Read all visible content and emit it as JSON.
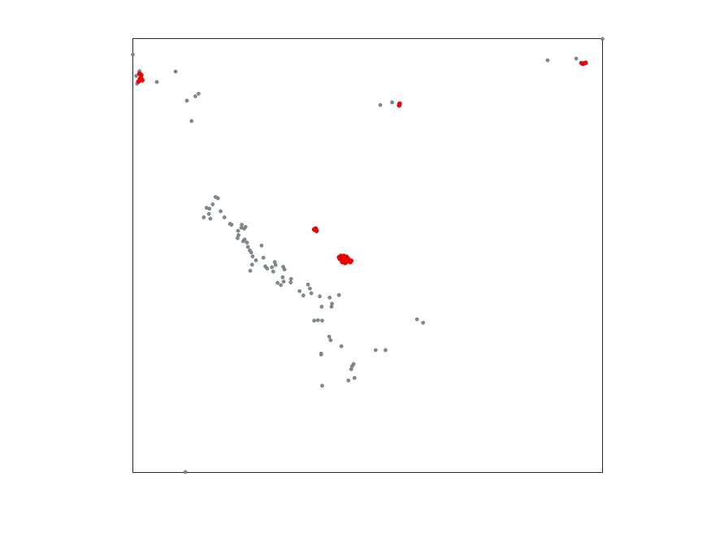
{
  "chart_data": {
    "type": "scatter",
    "title": "",
    "xlabel": "",
    "ylabel": "",
    "xlim": [
      0,
      1
    ],
    "ylim": [
      0,
      1
    ],
    "grid": false,
    "ticks": false,
    "series": [
      {
        "color": "#7f8c8d",
        "points": [
          [
            0.0,
            0.963
          ],
          [
            0.007,
            0.914
          ],
          [
            0.014,
            0.925
          ],
          [
            0.009,
            0.896
          ],
          [
            0.019,
            0.908
          ],
          [
            0.051,
            0.9
          ],
          [
            0.091,
            0.924
          ],
          [
            0.115,
            0.857
          ],
          [
            0.133,
            0.867
          ],
          [
            0.14,
            0.873
          ],
          [
            0.125,
            0.81
          ],
          [
            0.176,
            0.635
          ],
          [
            0.17,
            0.618
          ],
          [
            0.163,
            0.608
          ],
          [
            0.181,
            0.632
          ],
          [
            0.157,
            0.61
          ],
          [
            0.162,
            0.596
          ],
          [
            0.151,
            0.588
          ],
          [
            0.165,
            0.585
          ],
          [
            0.187,
            0.602
          ],
          [
            0.195,
            0.588
          ],
          [
            0.207,
            0.573
          ],
          [
            0.21,
            0.571
          ],
          [
            0.224,
            0.557
          ],
          [
            0.225,
            0.547
          ],
          [
            0.231,
            0.564
          ],
          [
            0.223,
            0.54
          ],
          [
            0.237,
            0.562
          ],
          [
            0.24,
            0.566
          ],
          [
            0.232,
            0.571
          ],
          [
            0.235,
            0.533
          ],
          [
            0.238,
            0.537
          ],
          [
            0.243,
            0.53
          ],
          [
            0.245,
            0.52
          ],
          [
            0.249,
            0.512
          ],
          [
            0.252,
            0.507
          ],
          [
            0.255,
            0.498
          ],
          [
            0.262,
            0.489
          ],
          [
            0.254,
            0.479
          ],
          [
            0.25,
            0.465
          ],
          [
            0.274,
            0.523
          ],
          [
            0.278,
            0.495
          ],
          [
            0.282,
            0.475
          ],
          [
            0.286,
            0.47
          ],
          [
            0.296,
            0.473
          ],
          [
            0.304,
            0.478
          ],
          [
            0.299,
            0.463
          ],
          [
            0.32,
            0.474
          ],
          [
            0.323,
            0.468
          ],
          [
            0.302,
            0.485
          ],
          [
            0.319,
            0.45
          ],
          [
            0.321,
            0.44
          ],
          [
            0.315,
            0.432
          ],
          [
            0.308,
            0.437
          ],
          [
            0.337,
            0.446
          ],
          [
            0.336,
            0.438
          ],
          [
            0.355,
            0.418
          ],
          [
            0.363,
            0.408
          ],
          [
            0.373,
            0.433
          ],
          [
            0.377,
            0.424
          ],
          [
            0.38,
            0.413
          ],
          [
            0.398,
            0.406
          ],
          [
            0.419,
            0.403
          ],
          [
            0.424,
            0.389
          ],
          [
            0.439,
            0.409
          ],
          [
            0.402,
            0.382
          ],
          [
            0.423,
            0.382
          ],
          [
            0.386,
            0.35
          ],
          [
            0.394,
            0.351
          ],
          [
            0.403,
            0.35
          ],
          [
            0.418,
            0.313
          ],
          [
            0.444,
            0.291
          ],
          [
            0.467,
            0.245
          ],
          [
            0.47,
            0.25
          ],
          [
            0.401,
            0.272
          ],
          [
            0.465,
            0.238
          ],
          [
            0.517,
            0.282
          ],
          [
            0.538,
            0.282
          ],
          [
            0.605,
            0.353
          ],
          [
            0.618,
            0.345
          ],
          [
            0.401,
            0.274
          ],
          [
            0.421,
            0.305
          ],
          [
            0.403,
            0.2
          ],
          [
            0.472,
            0.218
          ],
          [
            0.459,
            0.212
          ],
          [
            0.112,
            0.001
          ],
          [
            0.527,
            0.847
          ],
          [
            0.552,
            0.853
          ],
          [
            0.883,
            0.95
          ],
          [
            0.944,
            0.954
          ],
          [
            0.954,
            0.944
          ],
          [
            1.0,
            0.999
          ]
        ]
      },
      {
        "color": "#ff0000",
        "points": [
          [
            0.014,
            0.919
          ],
          [
            0.018,
            0.916
          ],
          [
            0.015,
            0.907
          ],
          [
            0.02,
            0.904
          ],
          [
            0.012,
            0.901
          ],
          [
            0.017,
            0.91
          ],
          [
            0.567,
            0.846
          ],
          [
            0.568,
            0.85
          ],
          [
            0.959,
            0.942
          ],
          [
            0.964,
            0.944
          ],
          [
            0.956,
            0.943
          ],
          [
            0.389,
            0.562
          ],
          [
            0.391,
            0.557
          ],
          [
            0.386,
            0.56
          ],
          [
            0.441,
            0.492
          ],
          [
            0.445,
            0.495
          ],
          [
            0.45,
            0.49
          ],
          [
            0.455,
            0.497
          ],
          [
            0.46,
            0.488
          ],
          [
            0.452,
            0.483
          ],
          [
            0.446,
            0.485
          ],
          [
            0.458,
            0.493
          ],
          [
            0.463,
            0.485
          ],
          [
            0.443,
            0.499
          ],
          [
            0.449,
            0.499
          ],
          [
            0.456,
            0.486
          ],
          [
            0.465,
            0.488
          ],
          [
            0.439,
            0.496
          ]
        ]
      }
    ]
  }
}
